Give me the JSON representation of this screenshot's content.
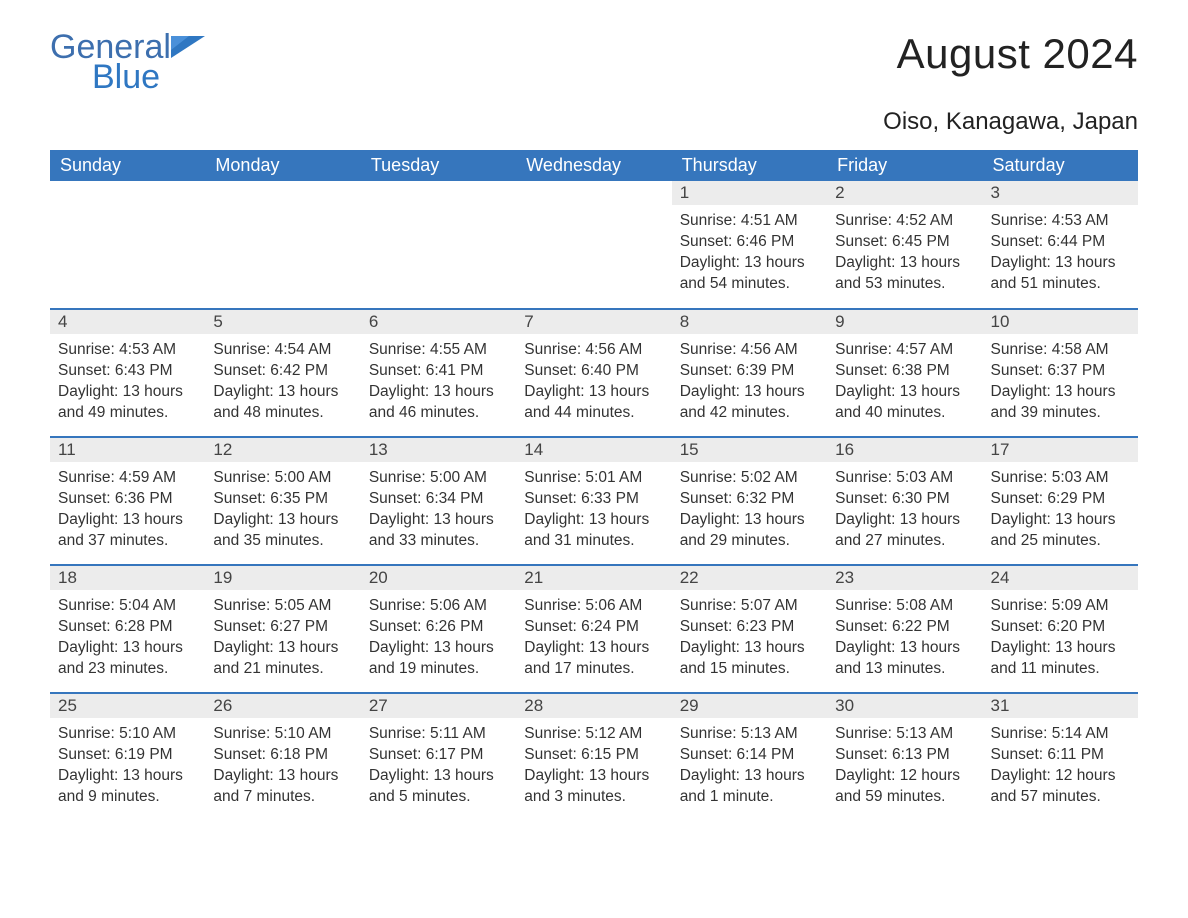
{
  "logo": {
    "text_top": "General",
    "text_bottom": "Blue",
    "brand_color": "#2f77c2"
  },
  "title": "August 2024",
  "location": "Oiso, Kanagawa, Japan",
  "colors": {
    "header_bg": "#3676bd",
    "header_text": "#ffffff",
    "daynum_bg": "#ececec",
    "body_text": "#333333",
    "row_border": "#3676bd",
    "page_bg": "#ffffff"
  },
  "typography": {
    "title_fontsize": 42,
    "location_fontsize": 24,
    "dayheader_fontsize": 18,
    "daynum_fontsize": 17,
    "body_fontsize": 15.5
  },
  "weekday_headers": [
    "Sunday",
    "Monday",
    "Tuesday",
    "Wednesday",
    "Thursday",
    "Friday",
    "Saturday"
  ],
  "weeks": [
    [
      null,
      null,
      null,
      null,
      {
        "n": "1",
        "sunrise": "4:51 AM",
        "sunset": "6:46 PM",
        "daylight": "13 hours and 54 minutes."
      },
      {
        "n": "2",
        "sunrise": "4:52 AM",
        "sunset": "6:45 PM",
        "daylight": "13 hours and 53 minutes."
      },
      {
        "n": "3",
        "sunrise": "4:53 AM",
        "sunset": "6:44 PM",
        "daylight": "13 hours and 51 minutes."
      }
    ],
    [
      {
        "n": "4",
        "sunrise": "4:53 AM",
        "sunset": "6:43 PM",
        "daylight": "13 hours and 49 minutes."
      },
      {
        "n": "5",
        "sunrise": "4:54 AM",
        "sunset": "6:42 PM",
        "daylight": "13 hours and 48 minutes."
      },
      {
        "n": "6",
        "sunrise": "4:55 AM",
        "sunset": "6:41 PM",
        "daylight": "13 hours and 46 minutes."
      },
      {
        "n": "7",
        "sunrise": "4:56 AM",
        "sunset": "6:40 PM",
        "daylight": "13 hours and 44 minutes."
      },
      {
        "n": "8",
        "sunrise": "4:56 AM",
        "sunset": "6:39 PM",
        "daylight": "13 hours and 42 minutes."
      },
      {
        "n": "9",
        "sunrise": "4:57 AM",
        "sunset": "6:38 PM",
        "daylight": "13 hours and 40 minutes."
      },
      {
        "n": "10",
        "sunrise": "4:58 AM",
        "sunset": "6:37 PM",
        "daylight": "13 hours and 39 minutes."
      }
    ],
    [
      {
        "n": "11",
        "sunrise": "4:59 AM",
        "sunset": "6:36 PM",
        "daylight": "13 hours and 37 minutes."
      },
      {
        "n": "12",
        "sunrise": "5:00 AM",
        "sunset": "6:35 PM",
        "daylight": "13 hours and 35 minutes."
      },
      {
        "n": "13",
        "sunrise": "5:00 AM",
        "sunset": "6:34 PM",
        "daylight": "13 hours and 33 minutes."
      },
      {
        "n": "14",
        "sunrise": "5:01 AM",
        "sunset": "6:33 PM",
        "daylight": "13 hours and 31 minutes."
      },
      {
        "n": "15",
        "sunrise": "5:02 AM",
        "sunset": "6:32 PM",
        "daylight": "13 hours and 29 minutes."
      },
      {
        "n": "16",
        "sunrise": "5:03 AM",
        "sunset": "6:30 PM",
        "daylight": "13 hours and 27 minutes."
      },
      {
        "n": "17",
        "sunrise": "5:03 AM",
        "sunset": "6:29 PM",
        "daylight": "13 hours and 25 minutes."
      }
    ],
    [
      {
        "n": "18",
        "sunrise": "5:04 AM",
        "sunset": "6:28 PM",
        "daylight": "13 hours and 23 minutes."
      },
      {
        "n": "19",
        "sunrise": "5:05 AM",
        "sunset": "6:27 PM",
        "daylight": "13 hours and 21 minutes."
      },
      {
        "n": "20",
        "sunrise": "5:06 AM",
        "sunset": "6:26 PM",
        "daylight": "13 hours and 19 minutes."
      },
      {
        "n": "21",
        "sunrise": "5:06 AM",
        "sunset": "6:24 PM",
        "daylight": "13 hours and 17 minutes."
      },
      {
        "n": "22",
        "sunrise": "5:07 AM",
        "sunset": "6:23 PM",
        "daylight": "13 hours and 15 minutes."
      },
      {
        "n": "23",
        "sunrise": "5:08 AM",
        "sunset": "6:22 PM",
        "daylight": "13 hours and 13 minutes."
      },
      {
        "n": "24",
        "sunrise": "5:09 AM",
        "sunset": "6:20 PM",
        "daylight": "13 hours and 11 minutes."
      }
    ],
    [
      {
        "n": "25",
        "sunrise": "5:10 AM",
        "sunset": "6:19 PM",
        "daylight": "13 hours and 9 minutes."
      },
      {
        "n": "26",
        "sunrise": "5:10 AM",
        "sunset": "6:18 PM",
        "daylight": "13 hours and 7 minutes."
      },
      {
        "n": "27",
        "sunrise": "5:11 AM",
        "sunset": "6:17 PM",
        "daylight": "13 hours and 5 minutes."
      },
      {
        "n": "28",
        "sunrise": "5:12 AM",
        "sunset": "6:15 PM",
        "daylight": "13 hours and 3 minutes."
      },
      {
        "n": "29",
        "sunrise": "5:13 AM",
        "sunset": "6:14 PM",
        "daylight": "13 hours and 1 minute."
      },
      {
        "n": "30",
        "sunrise": "5:13 AM",
        "sunset": "6:13 PM",
        "daylight": "12 hours and 59 minutes."
      },
      {
        "n": "31",
        "sunrise": "5:14 AM",
        "sunset": "6:11 PM",
        "daylight": "12 hours and 57 minutes."
      }
    ]
  ],
  "labels": {
    "sunrise": "Sunrise: ",
    "sunset": "Sunset: ",
    "daylight": "Daylight: "
  }
}
